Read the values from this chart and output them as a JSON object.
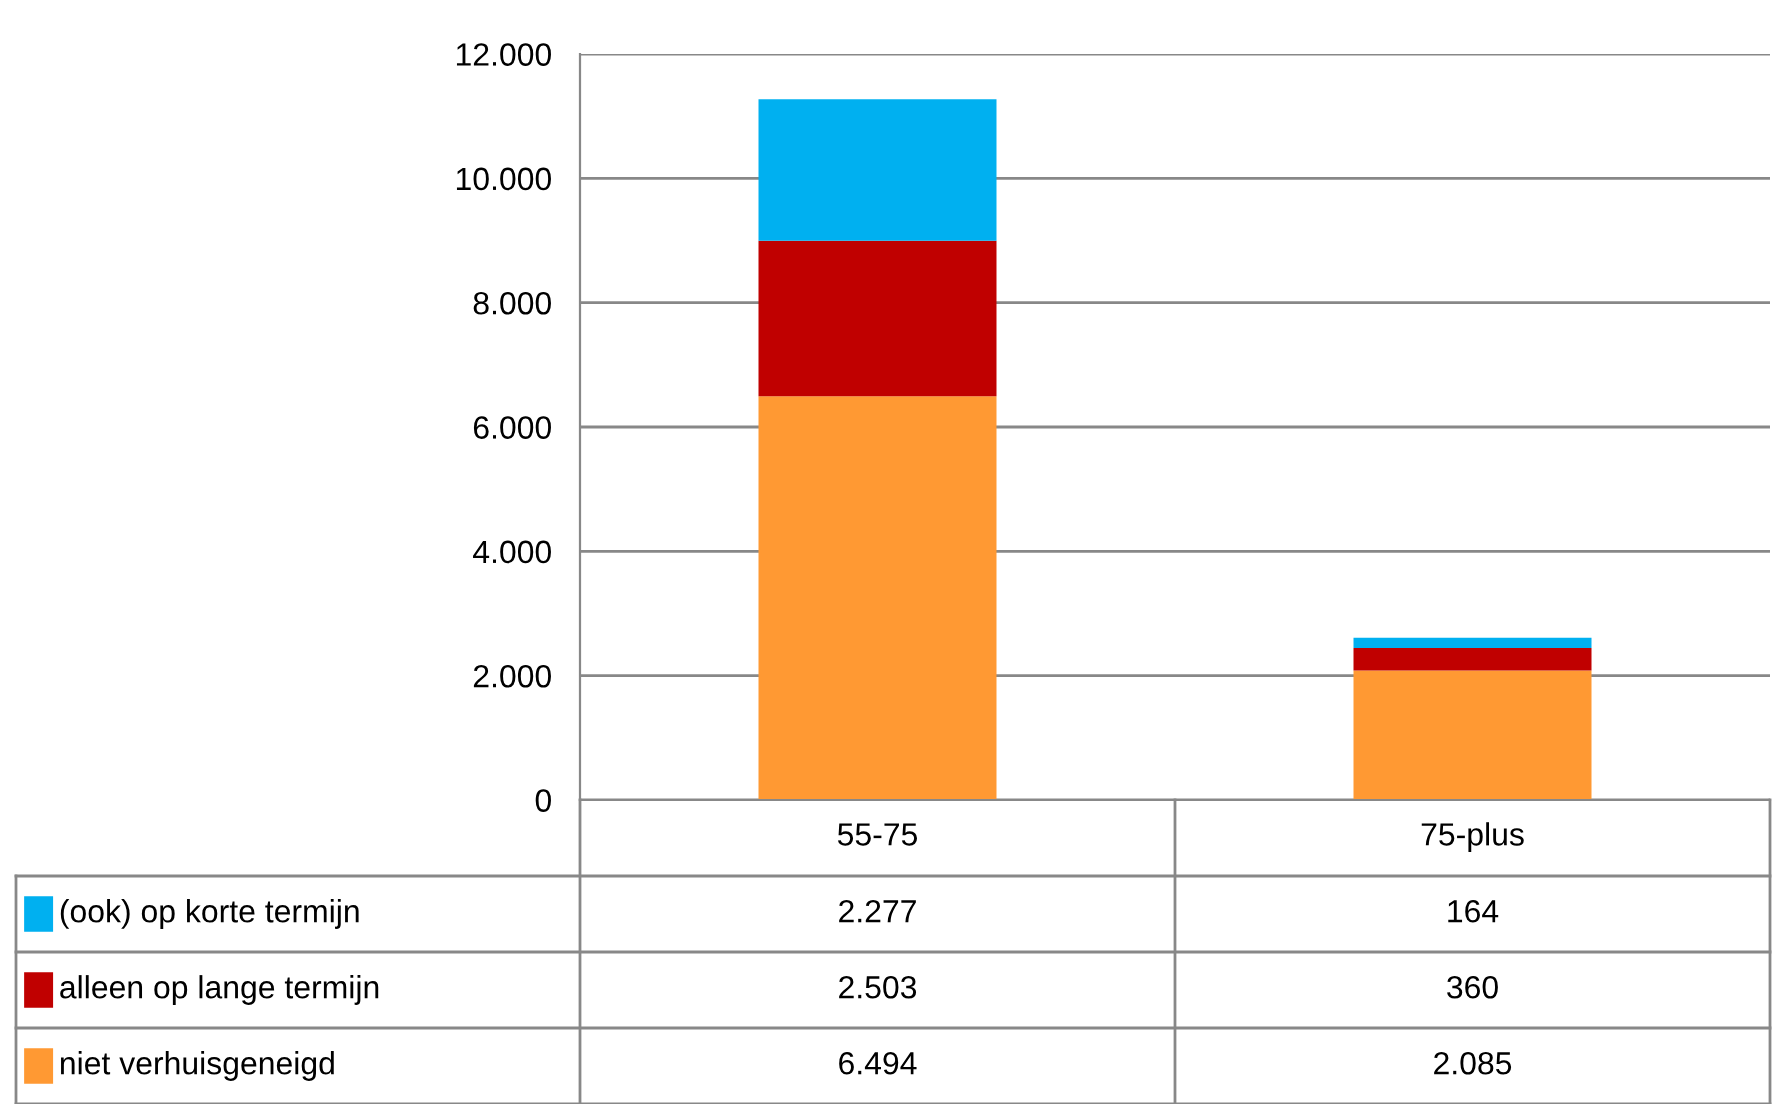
{
  "chart_data": {
    "type": "bar",
    "stacked": true,
    "categories": [
      "55-75",
      "75-plus"
    ],
    "series": [
      {
        "name": "niet verhuisgeneigd",
        "color": "#ff9933",
        "values": [
          6494,
          2085
        ],
        "value_labels": [
          "6.494",
          "2.085"
        ]
      },
      {
        "name": "alleen op lange termijn",
        "color": "#c00000",
        "values": [
          2503,
          360
        ],
        "value_labels": [
          "2.503",
          "360"
        ]
      },
      {
        "name": "(ook) op korte termijn",
        "color": "#00b0f0",
        "values": [
          2277,
          164
        ],
        "value_labels": [
          "2.277",
          "164"
        ]
      }
    ],
    "ylim": [
      0,
      12000
    ],
    "yticks": [
      {
        "value": 0,
        "label": "0"
      },
      {
        "value": 2000,
        "label": "2.000"
      },
      {
        "value": 4000,
        "label": "4.000"
      },
      {
        "value": 6000,
        "label": "6.000"
      },
      {
        "value": 8000,
        "label": "8.000"
      },
      {
        "value": 10000,
        "label": "10.000"
      },
      {
        "value": 12000,
        "label": "12.000"
      }
    ],
    "grid": "y",
    "legend": "bottom left"
  }
}
